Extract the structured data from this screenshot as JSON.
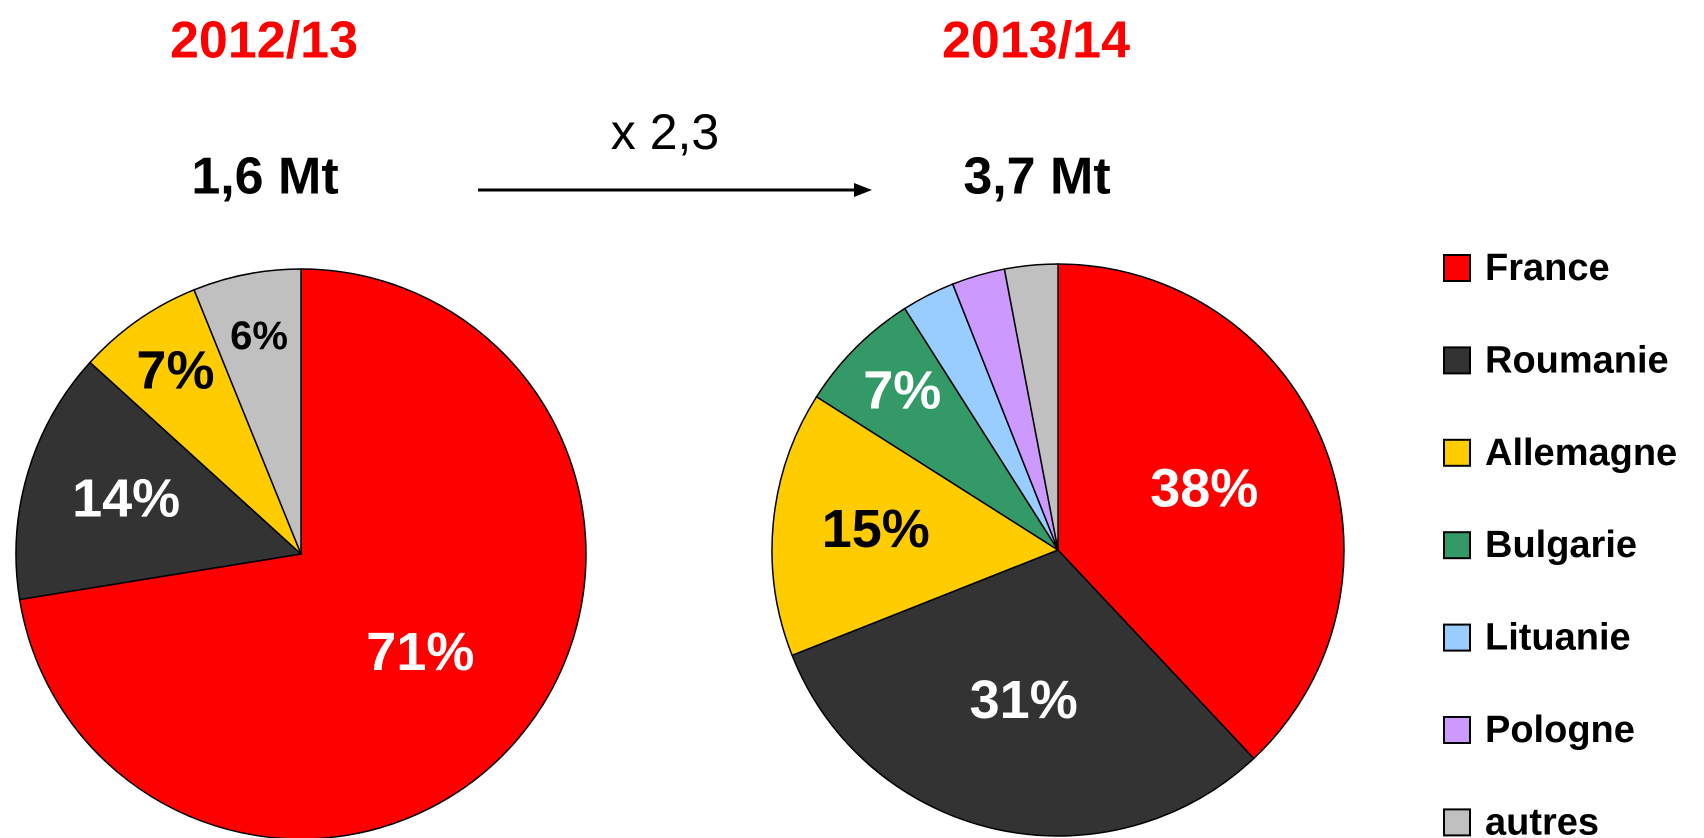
{
  "annotation": "x 2,3",
  "chart_data": [
    {
      "type": "pie",
      "title": "2012/13",
      "subtitle": "1,6 Mt",
      "categories": [
        "France",
        "Roumanie",
        "Allemagne",
        "autres"
      ],
      "values": [
        71,
        14,
        7,
        6
      ],
      "value_labels": [
        "71%",
        "14%",
        "7%",
        "6%"
      ],
      "colors": [
        "#ff0000",
        "#333333",
        "#ffcc00",
        "#c0c0c0"
      ]
    },
    {
      "type": "pie",
      "title": "2013/14",
      "subtitle": "3,7 Mt",
      "categories": [
        "France",
        "Roumanie",
        "Allemagne",
        "Bulgarie",
        "Lituanie",
        "Pologne",
        "autres"
      ],
      "values": [
        38,
        31,
        15,
        7,
        3,
        3,
        3
      ],
      "value_labels": [
        "38%",
        "31%",
        "15%",
        "7%",
        null,
        null,
        null
      ],
      "colors": [
        "#ff0000",
        "#333333",
        "#ffcc00",
        "#339966",
        "#99ccff",
        "#cc99ff",
        "#c0c0c0"
      ],
      "legend": "right"
    }
  ]
}
